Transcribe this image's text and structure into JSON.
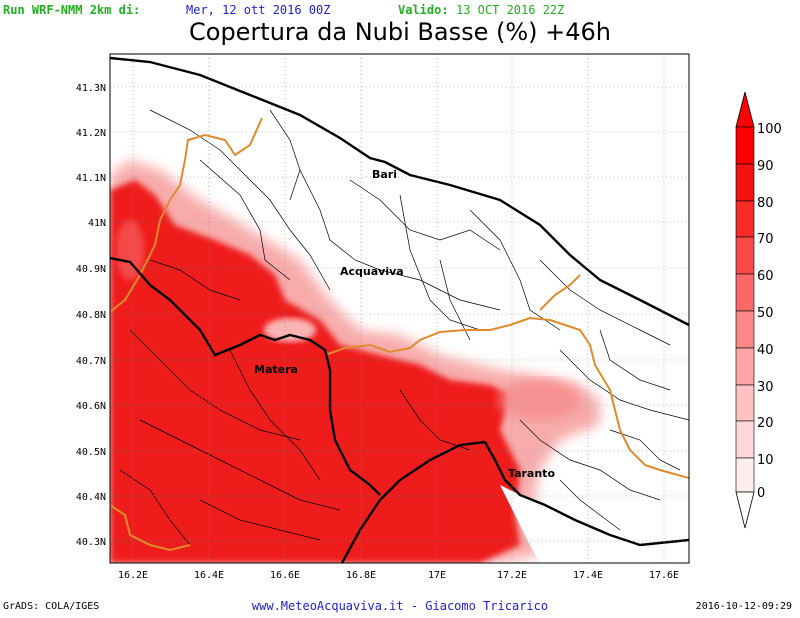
{
  "header": {
    "run_label": "Run WRF-NMM 2km di:",
    "run_date": "Mer, 12 ott 2016 00Z",
    "valid_label": "Valido:",
    "valid_date": "13 OCT 2016 22Z"
  },
  "title": "Copertura da Nubi Basse (%) +46h",
  "map": {
    "lat_labels": [
      "41.3N",
      "41.2N",
      "41.1N",
      "41N",
      "40.9N",
      "40.8N",
      "40.7N",
      "40.6N",
      "40.5N",
      "40.4N",
      "40.3N"
    ],
    "lon_labels": [
      "16.2E",
      "16.4E",
      "16.6E",
      "16.8E",
      "17E",
      "17.2E",
      "17.4E",
      "17.6E"
    ],
    "cities": [
      "Bari",
      "Acquaviva",
      "Matera",
      "Taranto"
    ],
    "colors": {
      "cloud": "#ef1c1c",
      "region_border": "#000000",
      "province_border": "#e08a2c"
    }
  },
  "legend": {
    "values": [
      "100",
      "90",
      "80",
      "70",
      "60",
      "50",
      "40",
      "30",
      "20",
      "10",
      "0"
    ],
    "colors": [
      "#ff0000",
      "#f51212",
      "#f82a2a",
      "#f94848",
      "#fa6868",
      "#fb8888",
      "#fca6a6",
      "#fdc2c2",
      "#fed8d8",
      "#ffecec",
      "#ffffff"
    ]
  },
  "footer": {
    "left": "GrADS: COLA/IGES",
    "center": "www.MeteoAcquaviva.it - Giacomo Tricarico",
    "right": "2016-10-12-09:29"
  }
}
